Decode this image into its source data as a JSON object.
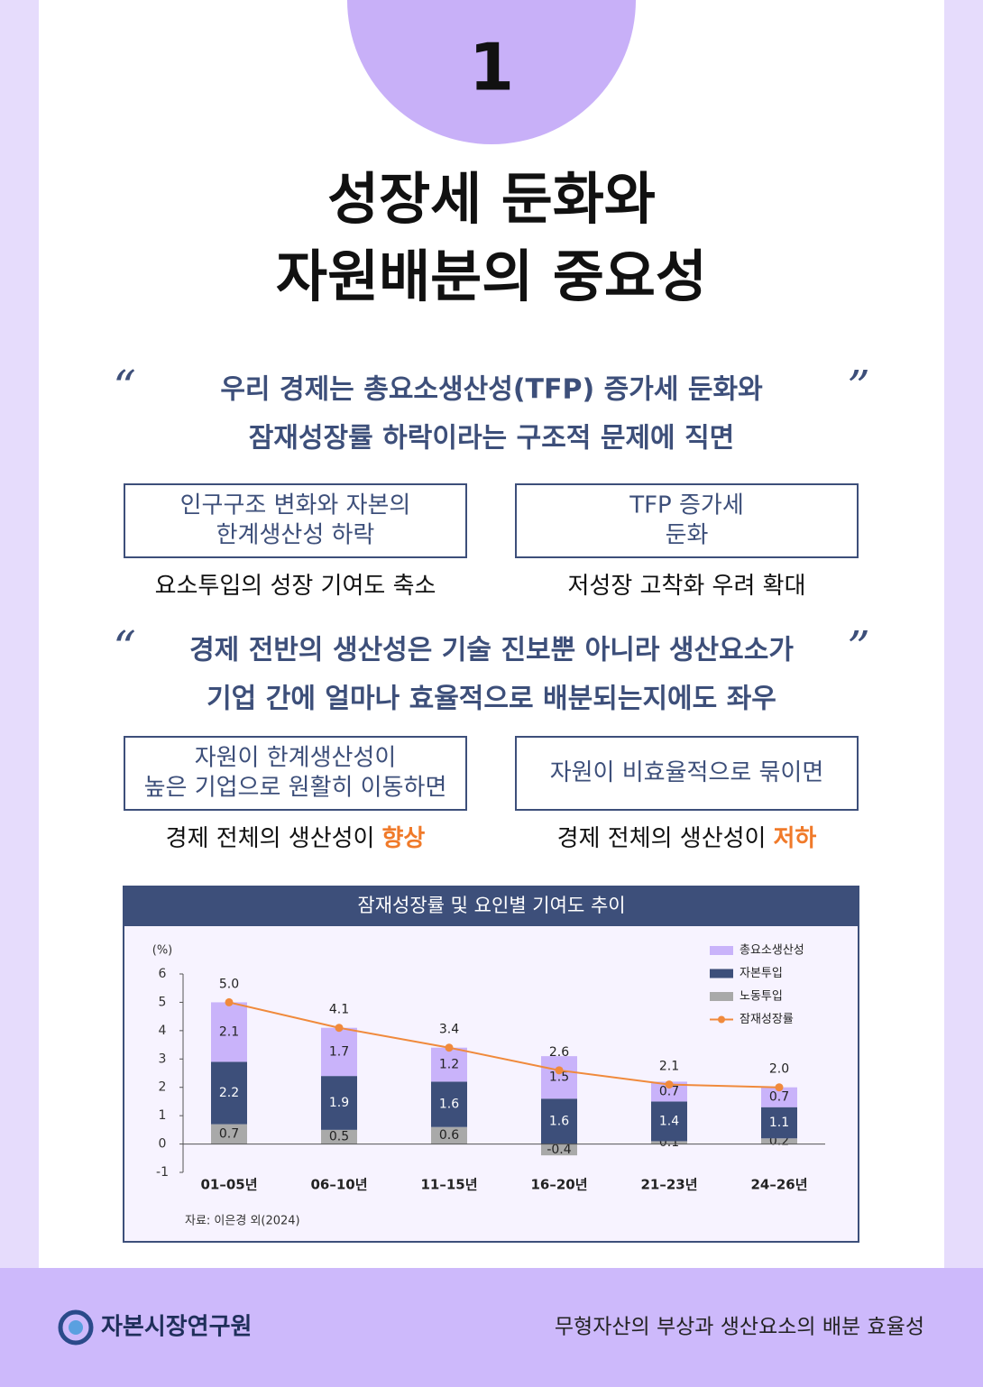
{
  "badge": "1",
  "title": [
    "성장세 둔화와",
    "자원배분의 중요성"
  ],
  "quote_marks": [
    "“",
    "”"
  ],
  "sections": [
    {
      "quote": [
        "우리 경제는 총요소생산성(TFP) 증가세 둔화와",
        "잠재성장률 하락이라는 구조적 문제에 직면"
      ],
      "items": [
        {
          "box": [
            "인구구조 변화와 자본의",
            "한계생산성 하락"
          ],
          "result": {
            "text": "요소투입의 성장 기여도 축소"
          }
        },
        {
          "box": [
            "TFP 증가세",
            "둔화"
          ],
          "result": {
            "text": "저성장 고착화 우려 확대"
          }
        }
      ]
    },
    {
      "quote": [
        "경제 전반의 생산성은 기술 진보뿐 아니라 생산요소가",
        "기업 간에 얼마나 효율적으로 배분되는지에도 좌우"
      ],
      "items": [
        {
          "box": [
            "자원이 한계생산성이",
            "높은 기업으로 원활히 이동하면"
          ],
          "result": {
            "text": "경제 전체의 생산성이",
            "highlight": "향상"
          }
        },
        {
          "box": [
            "자원이 비효율적으로 묶이면"
          ],
          "result": {
            "text": "경제 전체의 생산성이",
            "highlight": "저하"
          }
        }
      ]
    }
  ],
  "chart_data": {
    "type": "bar",
    "stacked": true,
    "title": "잠재성장률 및 요인별 기여도 추이",
    "unit": "(%)",
    "source": "자료: 이은경 외(2024)",
    "categories": [
      "01–05년",
      "06–10년",
      "11–15년",
      "16–20년",
      "21–23년",
      "24–26년"
    ],
    "ylim": [
      -1,
      6
    ],
    "yticks": [
      -1,
      0,
      1,
      2,
      3,
      4,
      5,
      6
    ],
    "series": [
      {
        "name": "총요소생산성",
        "color": "#c9b3fa",
        "values": [
          2.1,
          1.7,
          1.2,
          1.5,
          0.7,
          0.7
        ]
      },
      {
        "name": "자본투입",
        "color": "#3d4f7a",
        "values": [
          2.2,
          1.9,
          1.6,
          1.6,
          1.4,
          1.1
        ]
      },
      {
        "name": "노동투입",
        "color": "#a9a9a9",
        "values": [
          0.7,
          0.5,
          0.6,
          -0.4,
          0.1,
          0.2
        ]
      },
      {
        "name": "잠재성장률",
        "type": "line",
        "color": "#f08a3c",
        "values": [
          5.0,
          4.1,
          3.4,
          2.6,
          2.1,
          2.0
        ],
        "value_labels": [
          "5.0",
          "4.1",
          "3.4",
          "2.6",
          "2.1",
          "2.0"
        ]
      }
    ]
  },
  "footer": {
    "org": "자본시장연구원",
    "subtitle": "무형자산의 부상과 생산요소의 배분 효율성"
  }
}
